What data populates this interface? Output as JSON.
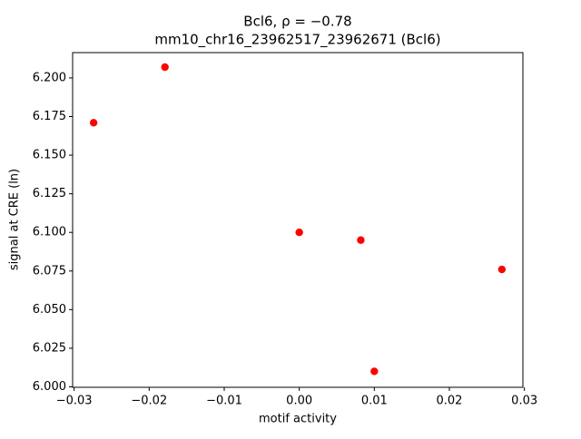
{
  "chart_data": {
    "type": "scatter",
    "title": "Bcl6, ρ = −0.78",
    "subtitle": "mm10_chr16_23962517_23962671 (Bcl6)",
    "x_label": "motif activity",
    "y_label": "signal at CRE (ln)",
    "color": "#ff0000",
    "x": [
      -0.0274,
      -0.0179,
      0.0,
      0.0082,
      0.01,
      0.027
    ],
    "values": [
      6.171,
      6.207,
      6.1,
      6.095,
      6.01,
      6.076
    ],
    "xlim": [
      -0.0302,
      0.0298
    ],
    "ylim": [
      5.9997,
      6.2164
    ],
    "xticks": [
      {
        "value": -0.03,
        "label": "−0.03"
      },
      {
        "value": -0.02,
        "label": "−0.02"
      },
      {
        "value": -0.01,
        "label": "−0.01"
      },
      {
        "value": 0,
        "label": "0.00"
      },
      {
        "value": 0.01,
        "label": "0.01"
      },
      {
        "value": 0.02,
        "label": "0.02"
      },
      {
        "value": 0.03,
        "label": "0.03"
      }
    ],
    "yticks": [
      {
        "value": 6.0,
        "label": "6.000"
      },
      {
        "value": 6.025,
        "label": "6.025"
      },
      {
        "value": 6.05,
        "label": "6.050"
      },
      {
        "value": 6.075,
        "label": "6.075"
      },
      {
        "value": 6.1,
        "label": "6.100"
      },
      {
        "value": 6.125,
        "label": "6.125"
      },
      {
        "value": 6.15,
        "label": "6.150"
      },
      {
        "value": 6.175,
        "label": "6.175"
      },
      {
        "value": 6.2,
        "label": "6.200"
      }
    ]
  }
}
